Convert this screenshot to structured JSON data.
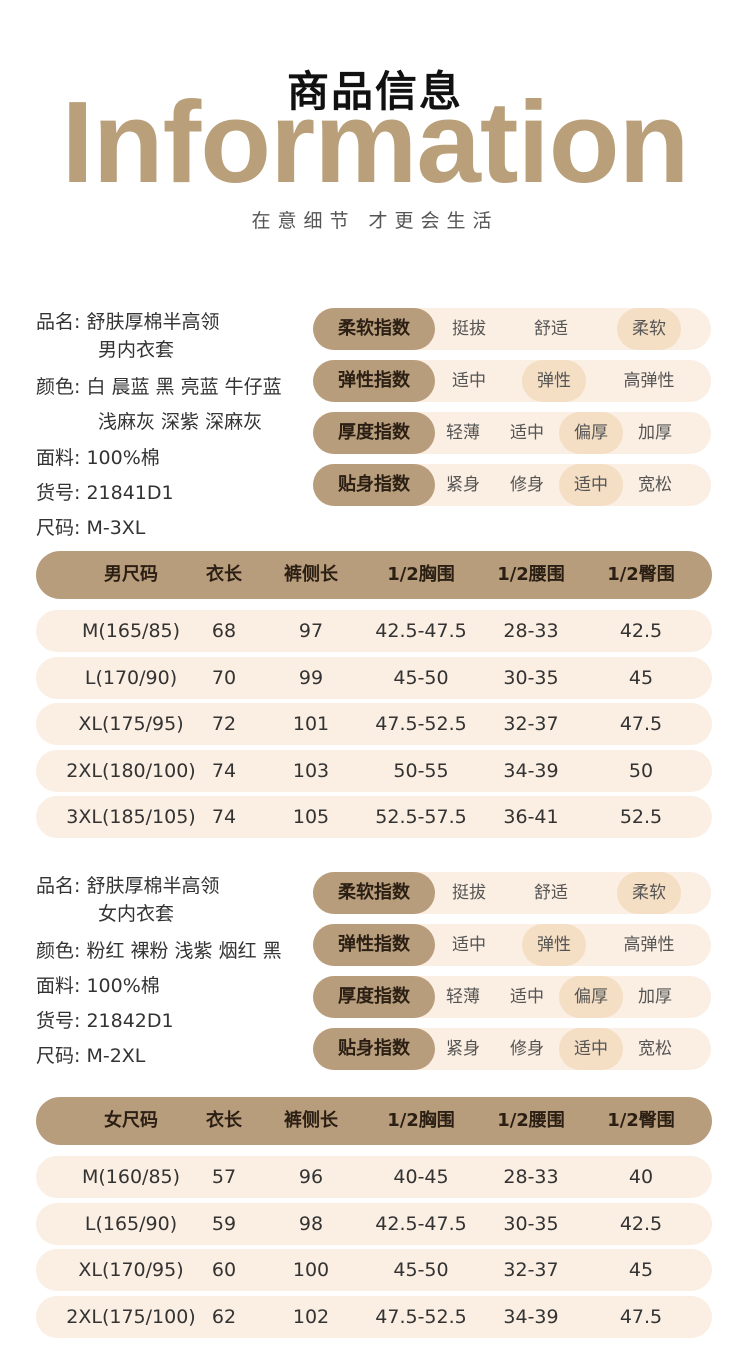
{
  "header": {
    "title_cn": "商品信息",
    "title_en": "Information",
    "slogan": "在意细节 才更会生活"
  },
  "index_labels": [
    "柔软指数",
    "弹性指数",
    "厚度指数",
    "贴身指数"
  ],
  "index_options": [
    {
      "options": [
        "挺拔",
        "舒适",
        "柔软"
      ],
      "selected": 2
    },
    {
      "options": [
        "适中",
        "弹性",
        "高弹性"
      ],
      "selected": 1
    },
    {
      "options": [
        "轻薄",
        "适中",
        "偏厚",
        "加厚"
      ],
      "selected": 2
    },
    {
      "options": [
        "紧身",
        "修身",
        "适中",
        "宽松"
      ],
      "selected": 2
    }
  ],
  "men": {
    "name_label": "品名:",
    "name_line1": "舒肤厚棉半高领",
    "name_line2": "男内衣套",
    "color_label": "颜色:",
    "color_line1": "白 晨蓝 黑 亮蓝 牛仔蓝",
    "color_line2": "浅麻灰 深紫 深麻灰",
    "fabric_label": "面料:",
    "fabric": "100%棉",
    "sku_label": "货号:",
    "sku": "21841D1",
    "size_label": "尺码:",
    "size": "M-3XL",
    "table_headers": [
      "男尺码",
      "衣长",
      "裤侧长",
      "1/2胸围",
      "1/2腰围",
      "1/2臀围"
    ],
    "rows": [
      [
        "M(165/85)",
        "68",
        "97",
        "42.5-47.5",
        "28-33",
        "42.5"
      ],
      [
        "L(170/90)",
        "70",
        "99",
        "45-50",
        "30-35",
        "45"
      ],
      [
        "XL(175/95)",
        "72",
        "101",
        "47.5-52.5",
        "32-37",
        "47.5"
      ],
      [
        "2XL(180/100)",
        "74",
        "103",
        "50-55",
        "34-39",
        "50"
      ],
      [
        "3XL(185/105)",
        "74",
        "105",
        "52.5-57.5",
        "36-41",
        "52.5"
      ]
    ]
  },
  "women": {
    "name_label": "品名:",
    "name_line1": "舒肤厚棉半高领",
    "name_line2": "女内衣套",
    "color_label": "颜色:",
    "color_line1": "粉红 裸粉 浅紫 烟红 黑",
    "fabric_label": "面料:",
    "fabric": "100%棉",
    "sku_label": "货号:",
    "sku": "21842D1",
    "size_label": "尺码:",
    "size": "M-2XL",
    "table_headers": [
      "女尺码",
      "衣长",
      "裤侧长",
      "1/2胸围",
      "1/2腰围",
      "1/2臀围"
    ],
    "rows": [
      [
        "M(160/85)",
        "57",
        "96",
        "40-45",
        "28-33",
        "40"
      ],
      [
        "L(165/90)",
        "59",
        "98",
        "42.5-47.5",
        "30-35",
        "42.5"
      ],
      [
        "XL(170/95)",
        "60",
        "100",
        "45-50",
        "32-37",
        "45"
      ],
      [
        "2XL(175/100)",
        "62",
        "102",
        "47.5-52.5",
        "34-39",
        "47.5"
      ]
    ]
  },
  "colors": {
    "accent": "#b89d7c",
    "title_en": "#b9a07a",
    "row_bg": "#fbeee2",
    "selected_bg": "#f4dec4"
  }
}
